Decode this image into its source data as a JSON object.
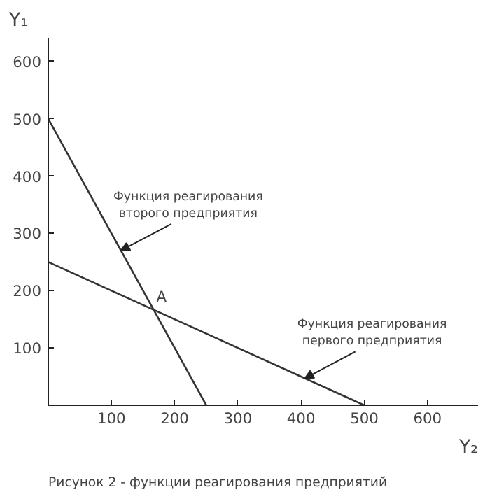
{
  "chart_data": {
    "type": "line",
    "xlabel": "Y₂",
    "ylabel": "Y₁",
    "series": [
      {
        "color": "#333333",
        "x": [
          0,
          500
        ],
        "values": [
          250,
          0
        ]
      },
      {
        "color": "#333333",
        "x": [
          0,
          250
        ],
        "values": [
          500,
          0
        ]
      }
    ],
    "xlim": [
      0,
      680
    ],
    "ylim": [
      0,
      640
    ],
    "xticks": [
      100,
      200,
      300,
      400,
      500,
      600
    ],
    "yticks": [
      100,
      200,
      300,
      400,
      500,
      600
    ],
    "grid": false,
    "marker": "none",
    "line_style": "solid",
    "annotations": [
      {
        "text": "Функция реагирования\nвторого предприятия",
        "x": 115,
        "y": 270
      },
      {
        "text": "Функция реагирования\nпервого предприятия",
        "x": 406,
        "y": 47
      },
      {
        "text": "A",
        "x": 166.7,
        "y": 166.7
      },
      "Рисунок 2 - функции реагирования предприятий"
    ]
  }
}
